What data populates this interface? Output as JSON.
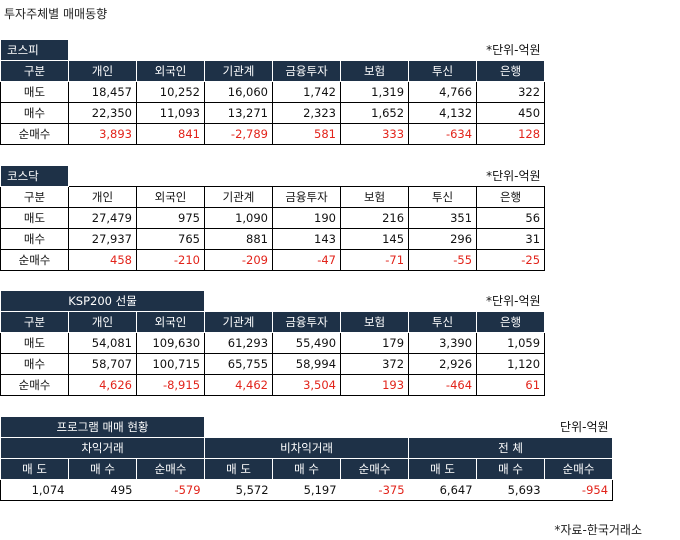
{
  "page_title": "투자주체별 매매동향",
  "source": "*자료-한국거래소",
  "kospi": {
    "title": "코스피",
    "unit": "*단위-억원",
    "headers": [
      "구분",
      "개인",
      "외국인",
      "기관계",
      "금융투자",
      "보험",
      "투신",
      "은행"
    ],
    "rows": [
      {
        "label": "매도",
        "values": [
          "18,457",
          "10,252",
          "16,060",
          "1,742",
          "1,319",
          "4,766",
          "322"
        ]
      },
      {
        "label": "매수",
        "values": [
          "22,350",
          "11,093",
          "13,271",
          "2,323",
          "1,652",
          "4,132",
          "450"
        ]
      },
      {
        "label": "순매수",
        "values": [
          "3,893",
          "841",
          "-2,789",
          "581",
          "333",
          "-634",
          "128"
        ]
      }
    ]
  },
  "kosdaq": {
    "title": "코스닥",
    "unit": "*단위-억원",
    "headers": [
      "구분",
      "개인",
      "외국인",
      "기관계",
      "금융투자",
      "보험",
      "투신",
      "은행"
    ],
    "rows": [
      {
        "label": "매도",
        "values": [
          "27,479",
          "975",
          "1,090",
          "190",
          "216",
          "351",
          "56"
        ]
      },
      {
        "label": "매수",
        "values": [
          "27,937",
          "765",
          "881",
          "143",
          "145",
          "296",
          "31"
        ]
      },
      {
        "label": "순매수",
        "values": [
          "458",
          "-210",
          "-209",
          "-47",
          "-71",
          "-55",
          "-25"
        ]
      }
    ]
  },
  "ksp200": {
    "title": "KSP200 선물",
    "unit": "*단위-억원",
    "headers": [
      "구분",
      "개인",
      "외국인",
      "기관계",
      "금융투자",
      "보험",
      "투신",
      "은행"
    ],
    "rows": [
      {
        "label": "매도",
        "values": [
          "54,081",
          "109,630",
          "61,293",
          "55,490",
          "179",
          "3,390",
          "1,059"
        ]
      },
      {
        "label": "매수",
        "values": [
          "58,707",
          "100,715",
          "65,755",
          "58,994",
          "372",
          "2,926",
          "1,120"
        ]
      },
      {
        "label": "순매수",
        "values": [
          "4,626",
          "-8,915",
          "4,462",
          "3,504",
          "193",
          "-464",
          "61"
        ]
      }
    ]
  },
  "program": {
    "title": "프로그램 매매 현황",
    "unit": "단위-억원",
    "groups": [
      "차익거래",
      "비차익거래",
      "전 체"
    ],
    "subheaders": [
      "매 도",
      "매 수",
      "순매수",
      "매 도",
      "매 수",
      "순매수",
      "매 도",
      "매 수",
      "순매수"
    ],
    "values": [
      "1,074",
      "495",
      "-579",
      "5,572",
      "5,197",
      "-375",
      "6,647",
      "5,693",
      "-954"
    ]
  },
  "colors": {
    "header_bg": "#1e3147",
    "header_text": "#ffffff",
    "net_value_text": "#e2231a"
  }
}
